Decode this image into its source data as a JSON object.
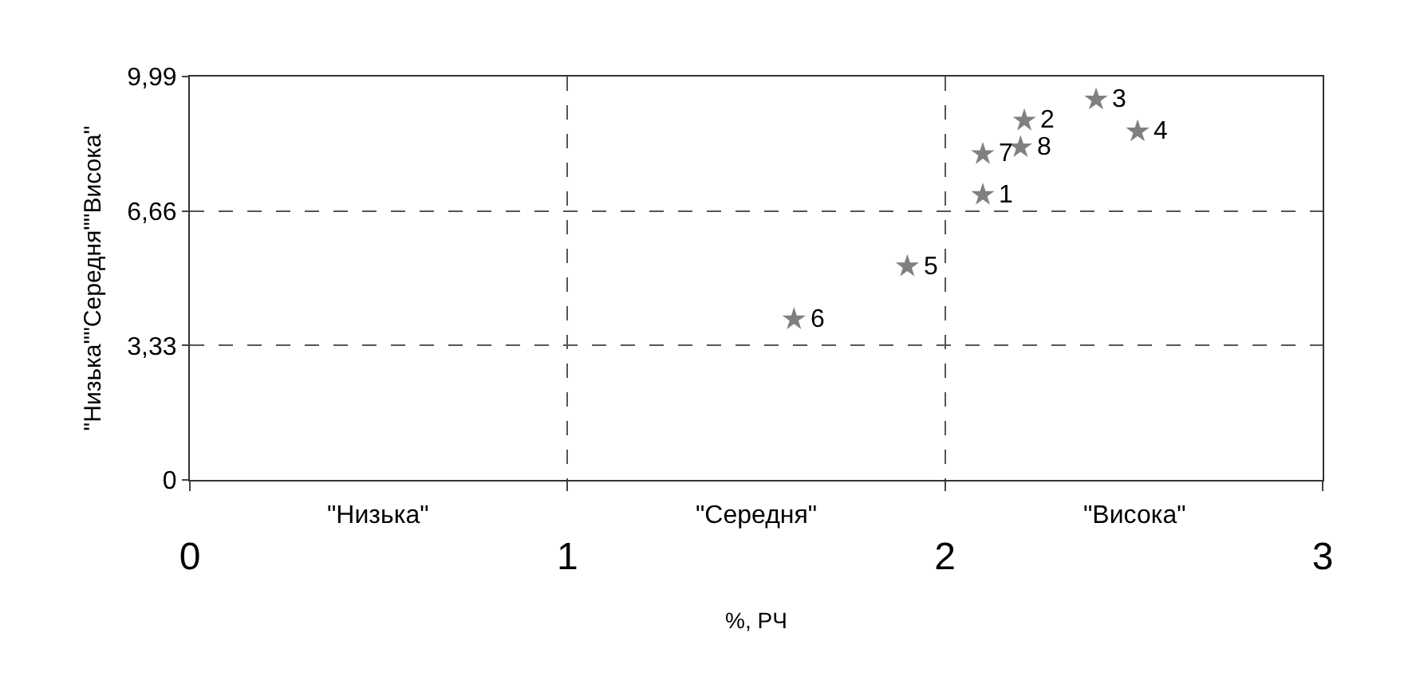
{
  "chart_data": {
    "type": "scatter",
    "xlabel": "%, РЧ",
    "ylabel": "\"Низька\"\"Середня\"\"Висока\"",
    "x": [
      2.1,
      2.21,
      2.4,
      2.51,
      1.9,
      1.6,
      2.1,
      2.2
    ],
    "values": [
      7.06,
      8.9,
      9.42,
      8.63,
      5.29,
      3.98,
      8.07,
      8.24
    ],
    "color": "#808080",
    "marker": "star",
    "xlim": [
      0,
      3
    ],
    "xticks": [
      0,
      1,
      2,
      3
    ],
    "ylim": [
      0,
      9.99
    ],
    "yticks": [
      0,
      {
        "value": 3.33,
        "label": "3,33"
      },
      {
        "value": 6.66,
        "label": "6,66"
      },
      {
        "value": 9.99,
        "label": "9,99"
      }
    ],
    "grid": true,
    "annotations": [
      "\"Низька\"",
      "\"Середня\"",
      "\"Висока\"",
      {
        "text": "1",
        "x": 2.1,
        "y": 7.06
      },
      {
        "text": "2",
        "x": 2.21,
        "y": 8.9
      },
      {
        "text": "3",
        "x": 2.4,
        "y": 9.42
      },
      {
        "text": "4",
        "x": 2.51,
        "y": 8.63
      },
      {
        "text": "5",
        "x": 1.9,
        "y": 5.29
      },
      {
        "text": "6",
        "x": 1.6,
        "y": 3.98
      },
      {
        "text": "7",
        "x": 2.1,
        "y": 8.07
      },
      {
        "text": "8",
        "x": 2.2,
        "y": 8.24
      }
    ]
  }
}
